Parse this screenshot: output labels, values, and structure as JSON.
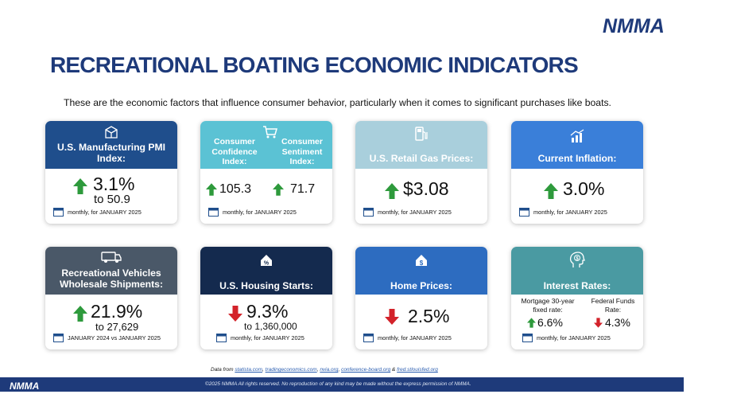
{
  "brand": {
    "logo": "NMMA"
  },
  "title": "RECREATIONAL BOATING ECONOMIC INDICATORS",
  "subtitle": "These are the economic factors that influence consumer behavior, particularly when it comes to significant purchases like boats.",
  "cards": [
    {
      "title": "U.S. Manufacturing PMI Index:",
      "value": "3.1%",
      "sub": "to 50.9",
      "direction": "up",
      "footnote": "monthly, for JANUARY 2025",
      "color": "#1f4e8c",
      "icon": "factory-icon"
    },
    {
      "title_left": "Consumer Confidence Index:",
      "title_right": "Consumer Sentiment Index:",
      "value_left": "105.3",
      "value_right": "71.7",
      "direction": "up",
      "footnote": "monthly, for JANUARY 2025",
      "color": "#5bc2d4",
      "icon": "cart-icon"
    },
    {
      "title": "U.S. Retail Gas Prices:",
      "value": "$3.08",
      "direction": "up",
      "footnote": "monthly, for  JANUARY 2025",
      "color": "#a9cfdc",
      "icon": "gas-pump-icon"
    },
    {
      "title": "Current Inflation:",
      "value": "3.0%",
      "direction": "up",
      "footnote": "monthly, for JANUARY 2025",
      "color": "#3a7fd9",
      "icon": "chart-growth-icon"
    },
    {
      "title": "Recreational Vehicles Wholesale Shipments:",
      "value": "21.9%",
      "sub": "to 27,629",
      "direction": "up",
      "footnote": "JANUARY 2024 vs JANUARY 2025",
      "color": "#4a5868",
      "icon": "rv-icon"
    },
    {
      "title": "U.S. Housing Starts:",
      "value": "9.3%",
      "sub": "to 1,360,000",
      "direction": "down",
      "footnote": "monthly, for JANUARY 2025",
      "color": "#142a4e",
      "icon": "house-percent-icon"
    },
    {
      "title": "Home Prices:",
      "value": "2.5%",
      "direction": "down",
      "footnote": "monthly, for JANUARY 2025",
      "color": "#2d6cc0",
      "icon": "house-dollar-icon"
    },
    {
      "title": "Interest Rates:",
      "label_left": "Mortgage 30-year fixed rate:",
      "label_right": "Federal Funds Rate:",
      "value_left": "6.6%",
      "value_right": "4.3%",
      "direction_left": "up",
      "direction_right": "down",
      "footnote": "monthly, for JANUARY 2025",
      "color": "#4a9aa2",
      "icon": "head-dollar-icon"
    }
  ],
  "colors": {
    "up": "#2e9a3c",
    "down": "#d3222a",
    "title": "#1e3a7a",
    "footer": "#1e3a7a"
  },
  "data_note": {
    "prefix": "Data from ",
    "s1": "statista.com",
    "s2": "tradingeconomics.com",
    "s3": "nvia.org",
    "s4": "conference-board.org",
    "s5": "fred.stlouisfed.org"
  },
  "footer": {
    "logo": "NMMA",
    "copyright": "©2025 NMMA All rights reserved. No reproduction of any kind may be made without the express permission of NMMA."
  }
}
